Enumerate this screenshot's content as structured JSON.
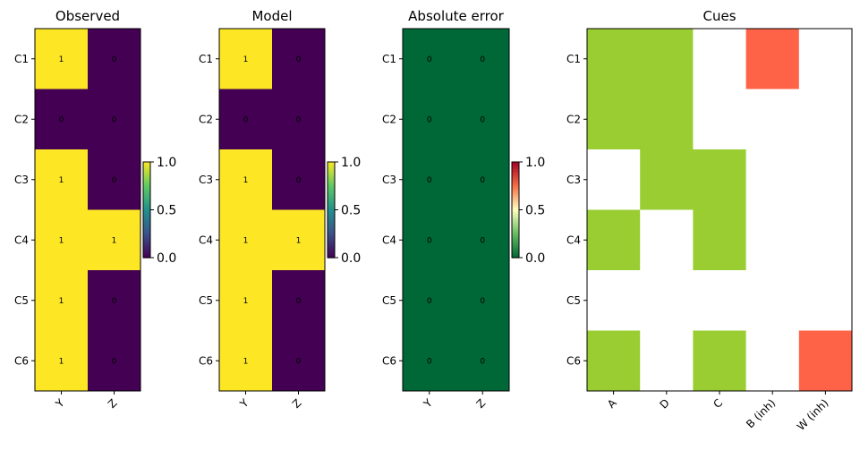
{
  "chart_data": [
    {
      "type": "heatmap",
      "title": "Observed",
      "rows": [
        "C1",
        "C2",
        "C3",
        "C4",
        "C5",
        "C6"
      ],
      "columns": [
        "Y",
        "Z"
      ],
      "values": [
        [
          1,
          0
        ],
        [
          0,
          0
        ],
        [
          1,
          0
        ],
        [
          1,
          1
        ],
        [
          1,
          0
        ],
        [
          1,
          0
        ]
      ],
      "colormap": "viridis",
      "colorbar": {
        "min": 0.0,
        "max": 1.0,
        "ticks": [
          "0.0",
          "0.5",
          "1.0"
        ]
      }
    },
    {
      "type": "heatmap",
      "title": "Model",
      "rows": [
        "C1",
        "C2",
        "C3",
        "C4",
        "C5",
        "C6"
      ],
      "columns": [
        "Y",
        "Z"
      ],
      "values": [
        [
          1,
          0
        ],
        [
          0,
          0
        ],
        [
          1,
          0
        ],
        [
          1,
          1
        ],
        [
          1,
          0
        ],
        [
          1,
          0
        ]
      ],
      "colormap": "viridis",
      "colorbar": {
        "min": 0.0,
        "max": 1.0,
        "ticks": [
          "0.0",
          "0.5",
          "1.0"
        ]
      }
    },
    {
      "type": "heatmap",
      "title": "Absolute error",
      "rows": [
        "C1",
        "C2",
        "C3",
        "C4",
        "C5",
        "C6"
      ],
      "columns": [
        "Y",
        "Z"
      ],
      "values": [
        [
          0,
          0
        ],
        [
          0,
          0
        ],
        [
          0,
          0
        ],
        [
          0,
          0
        ],
        [
          0,
          0
        ],
        [
          0,
          0
        ]
      ],
      "colormap": "RdYlGn_r",
      "colorbar": {
        "min": 0.0,
        "max": 1.0,
        "ticks": [
          "0.0",
          "0.5",
          "1.0"
        ]
      }
    },
    {
      "type": "heatmap",
      "title": "Cues",
      "rows": [
        "C1",
        "C2",
        "C3",
        "C4",
        "C5",
        "C6"
      ],
      "columns": [
        "A",
        "D",
        "C",
        "B (inh)",
        "W (inh)"
      ],
      "values": [
        [
          1,
          1,
          0,
          -1,
          0
        ],
        [
          1,
          1,
          0,
          0,
          0
        ],
        [
          0,
          1,
          1,
          0,
          0
        ],
        [
          1,
          0,
          1,
          0,
          0
        ],
        [
          0,
          0,
          0,
          0,
          0
        ],
        [
          1,
          0,
          1,
          0,
          -1
        ]
      ],
      "colors": {
        "excitatory": "#9acd32",
        "inhibitory": "#ff6347",
        "absent": "#ffffff"
      }
    }
  ]
}
